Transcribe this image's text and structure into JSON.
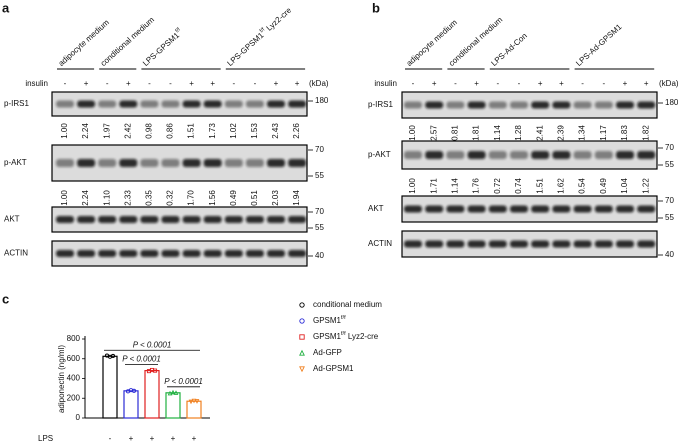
{
  "panel_a": {
    "label": "a",
    "groups": [
      {
        "text": "adipocyte medium"
      },
      {
        "text": "conditional medium"
      },
      {
        "text": "LPS-GPSM1",
        "sup": "f/f"
      },
      {
        "text": "LPS-GPSM1",
        "sup": "f/f",
        "suffix": " Lyz2-cre"
      }
    ],
    "insulin_label": "insulin",
    "insulin": [
      "-",
      "+",
      "-",
      "+",
      "-",
      "-",
      "+",
      "+",
      "-",
      "-",
      "+",
      "+"
    ],
    "kda_label": "(kDa)",
    "blots": [
      {
        "name": "p-IRS1",
        "markers": [
          "180"
        ],
        "quant": [
          "1.00",
          "2.24",
          "1.97",
          "2.42",
          "0.98",
          "0.86",
          "1.51",
          "1.73",
          "1.02",
          "1.53",
          "2.43",
          "2.26"
        ]
      },
      {
        "name": "p-AKT",
        "markers": [
          "70",
          "55"
        ],
        "quant": [
          "1.00",
          "2.24",
          "1.10",
          "2.33",
          "0.35",
          "0.32",
          "1.70",
          "1.56",
          "0.49",
          "0.51",
          "2.03",
          "1.94"
        ]
      },
      {
        "name": "AKT",
        "markers": [
          "70",
          "55"
        ]
      },
      {
        "name": "ACTIN",
        "markers": [
          "40"
        ]
      }
    ]
  },
  "panel_b": {
    "label": "b",
    "groups": [
      {
        "text": "adipocyte medium"
      },
      {
        "text": "conditional medium"
      },
      {
        "text": "LPS-Ad-Con"
      },
      {
        "text": "LPS-Ad-GPSM1"
      }
    ],
    "insulin_label": "insulin",
    "insulin": [
      "-",
      "+",
      "-",
      "+",
      "-",
      "-",
      "+",
      "+",
      "-",
      "-",
      "+",
      "+"
    ],
    "kda_label": "(kDa)",
    "blots": [
      {
        "name": "p-IRS1",
        "markers": [
          "180"
        ],
        "quant": [
          "1.00",
          "2.57",
          "0.81",
          "1.81",
          "1.14",
          "1.28",
          "2.41",
          "2.39",
          "1.34",
          "1.17",
          "1.83",
          "1.82"
        ]
      },
      {
        "name": "p-AKT",
        "markers": [
          "70",
          "55"
        ],
        "quant": [
          "1.00",
          "1.71",
          "1.14",
          "1.76",
          "0.72",
          "0.74",
          "1.51",
          "1.62",
          "0.54",
          "0.49",
          "1.04",
          "1.22"
        ]
      },
      {
        "name": "AKT",
        "markers": [
          "70",
          "55"
        ]
      },
      {
        "name": "ACTIN",
        "markers": [
          "40"
        ]
      }
    ]
  },
  "panel_c_label": "c",
  "chart_data": {
    "type": "bar",
    "ylabel": "adiponectin (ng/ml)",
    "xlabel": "LPS",
    "categories": [
      "-",
      "+",
      "+",
      "+",
      "+"
    ],
    "values": [
      625,
      275,
      480,
      255,
      170
    ],
    "points": [
      [
        632,
        620,
        628
      ],
      [
        270,
        282,
        275
      ],
      [
        475,
        486,
        480
      ],
      [
        250,
        260,
        255
      ],
      [
        165,
        174,
        170
      ]
    ],
    "colors": [
      "#000000",
      "#2b2bd6",
      "#e02020",
      "#20b040",
      "#f08020"
    ],
    "markers": [
      "circle",
      "circle",
      "square",
      "triangle",
      "triangle-down"
    ],
    "ylim": [
      0,
      800
    ],
    "yticks": [
      0,
      200,
      400,
      600,
      800
    ],
    "legend": [
      {
        "text": "conditional medium"
      },
      {
        "text": "GPSM1",
        "sup": "f/f"
      },
      {
        "text": "GPSM1",
        "sup": "f/f",
        "suffix": " Lyz2-cre"
      },
      {
        "text": "Ad-GFP"
      },
      {
        "text": "Ad-GPSM1"
      }
    ],
    "comparisons": [
      {
        "from": 0,
        "to": 4,
        "label": "P < 0.0001"
      },
      {
        "from": 1,
        "to": 2,
        "label": "P < 0.0001"
      },
      {
        "from": 3,
        "to": 4,
        "label": "P < 0.0001"
      }
    ]
  }
}
